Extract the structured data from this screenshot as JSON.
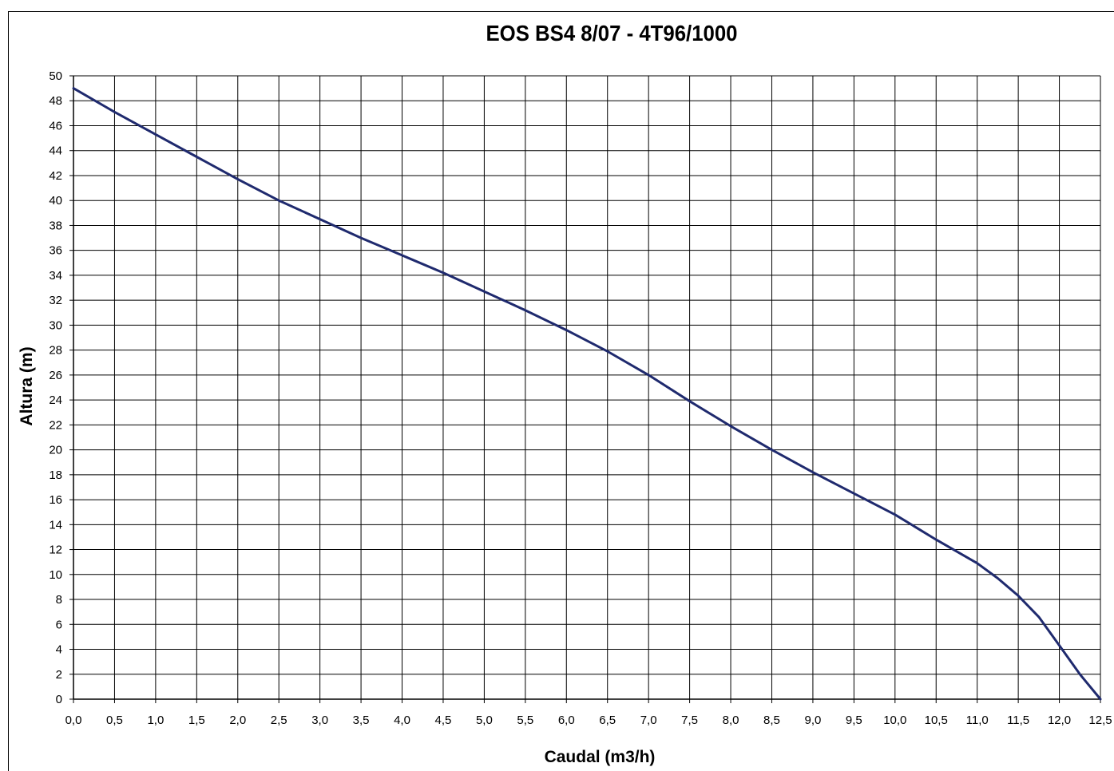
{
  "chart_data": {
    "type": "line",
    "title": "EOS BS4 8/07 - 4T96/1000",
    "xlabel": "Caudal (m3/h)",
    "ylabel": "Altura (m)",
    "xlim": [
      0,
      12.5
    ],
    "ylim": [
      0,
      50
    ],
    "x_ticks": [
      "0,0",
      "0,5",
      "1,0",
      "1,5",
      "2,0",
      "2,5",
      "3,0",
      "3,5",
      "4,0",
      "4,5",
      "5,0",
      "5,5",
      "6,0",
      "6,5",
      "7,0",
      "7,5",
      "8,0",
      "8,5",
      "9,0",
      "9,5",
      "10,0",
      "10,5",
      "11,0",
      "11,5",
      "12,0",
      "12,5"
    ],
    "y_ticks": [
      "0",
      "2",
      "4",
      "6",
      "8",
      "10",
      "12",
      "14",
      "16",
      "18",
      "20",
      "22",
      "24",
      "26",
      "28",
      "30",
      "32",
      "34",
      "36",
      "38",
      "40",
      "42",
      "44",
      "46",
      "48",
      "50"
    ],
    "grid": true,
    "series": [
      {
        "color": "#1f2a6e",
        "points": [
          [
            0.0,
            49.0
          ],
          [
            0.5,
            47.1
          ],
          [
            1.0,
            45.3
          ],
          [
            1.5,
            43.5
          ],
          [
            2.0,
            41.7
          ],
          [
            2.5,
            40.0
          ],
          [
            3.0,
            38.5
          ],
          [
            3.5,
            37.0
          ],
          [
            4.0,
            35.6
          ],
          [
            4.5,
            34.2
          ],
          [
            5.0,
            32.7
          ],
          [
            5.5,
            31.2
          ],
          [
            6.0,
            29.6
          ],
          [
            6.5,
            27.9
          ],
          [
            7.0,
            26.0
          ],
          [
            7.5,
            23.9
          ],
          [
            8.0,
            21.9
          ],
          [
            8.5,
            20.0
          ],
          [
            9.0,
            18.2
          ],
          [
            9.5,
            16.5
          ],
          [
            10.0,
            14.8
          ],
          [
            10.5,
            12.8
          ],
          [
            11.0,
            10.9
          ],
          [
            11.25,
            9.7
          ],
          [
            11.5,
            8.3
          ],
          [
            11.75,
            6.6
          ],
          [
            12.0,
            4.3
          ],
          [
            12.25,
            2.0
          ],
          [
            12.5,
            0.0
          ]
        ]
      }
    ]
  }
}
